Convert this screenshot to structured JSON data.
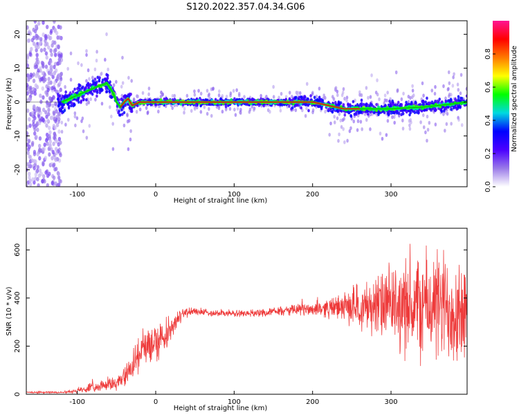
{
  "figure": {
    "title": "S120.2022.357.04.34.G06"
  },
  "chart_data": [
    {
      "type": "heatmap",
      "panel": "spectrogram",
      "xlabel": "Height of straight line (km)",
      "ylabel": "Frequency (Hz)",
      "xlim": [
        -165,
        397
      ],
      "ylim": [
        -25,
        24
      ],
      "x_ticks": [
        -100,
        0,
        100,
        200,
        300
      ],
      "y_ticks": [
        20,
        10,
        0,
        -10,
        -20
      ],
      "colorbar": {
        "label": "Normalized spectral amplitude",
        "range": [
          0,
          1
        ],
        "ticks": [
          0.0,
          0.2,
          0.4,
          0.6,
          0.8
        ],
        "colormap": [
          "#ffffff",
          "#9a7ae8",
          "#4b00ff",
          "#0000ff",
          "#00d9e0",
          "#00ff00",
          "#ffff00",
          "#ff7a00",
          "#ff0000",
          "#ff1493"
        ]
      },
      "ridge": {
        "name": "",
        "x": [
          -120,
          -110,
          -100,
          -90,
          -80,
          -70,
          -62,
          -55,
          -50,
          -45,
          -40,
          -35,
          -30,
          -20,
          0,
          100,
          200,
          220,
          240,
          260,
          300,
          340,
          380,
          397
        ],
        "y": [
          0,
          1,
          2,
          3,
          4,
          5,
          5.5,
          3,
          0,
          -1.5,
          0,
          1,
          -1,
          0,
          0,
          0,
          0,
          -1,
          -2,
          -2,
          -2,
          -1.5,
          -0.5,
          0
        ]
      }
    },
    {
      "type": "line",
      "panel": "snr",
      "xlabel": "Height of straight line (km)",
      "ylabel": "SNR (10 * v/v)",
      "xlim": [
        -165,
        397
      ],
      "ylim": [
        0,
        690
      ],
      "x_ticks": [
        -100,
        0,
        100,
        200,
        300
      ],
      "y_ticks": [
        0,
        200,
        400,
        600
      ],
      "color": "#ee3a3a",
      "series": [
        {
          "name": "",
          "x": [
            -165,
            -140,
            -120,
            -100,
            -80,
            -60,
            -50,
            -40,
            -30,
            -20,
            -10,
            0,
            10,
            20,
            30,
            40,
            50,
            60,
            80,
            100,
            120,
            140,
            160,
            180,
            200,
            220,
            240,
            260,
            280,
            300,
            320,
            340,
            360,
            380,
            397
          ],
          "y": [
            8,
            8,
            8,
            15,
            30,
            40,
            45,
            70,
            120,
            170,
            200,
            220,
            240,
            280,
            320,
            340,
            345,
            340,
            338,
            335,
            337,
            340,
            345,
            350,
            355,
            358,
            362,
            365,
            370,
            365,
            360,
            370,
            365,
            360,
            355
          ],
          "spread": [
            4,
            4,
            4,
            10,
            20,
            25,
            30,
            40,
            60,
            80,
            90,
            90,
            70,
            50,
            30,
            20,
            15,
            15,
            15,
            15,
            15,
            15,
            20,
            25,
            30,
            40,
            60,
            90,
            130,
            170,
            200,
            230,
            240,
            250,
            250
          ]
        }
      ]
    }
  ]
}
